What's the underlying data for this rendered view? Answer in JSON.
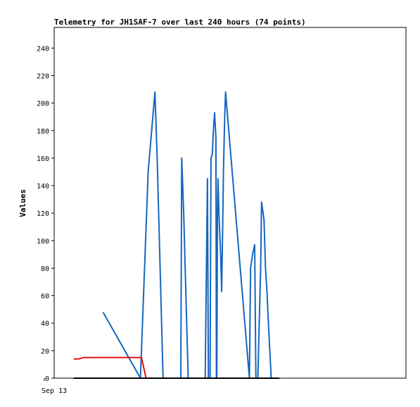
{
  "chart_data": {
    "type": "line",
    "title": "Telemetry for JH1SAF-7 over last 240 hours (74 points)",
    "ylabel": "Values",
    "xlabel": "",
    "ylim": [
      0,
      255
    ],
    "yticks": [
      0,
      20,
      40,
      60,
      80,
      100,
      120,
      140,
      160,
      180,
      200,
      220,
      240
    ],
    "xlim": [
      0,
      240
    ],
    "xticks": [
      {
        "x": 0,
        "label": "Sep 13"
      }
    ],
    "grid": false,
    "legend": "none",
    "series": [
      {
        "color": "#1565c0",
        "x": [
          39.0,
          63.8,
          68.9,
          73.4,
          74.9,
          78.8,
          90.6,
          91.2,
          92.5,
          95.5,
          106.8,
          107.6,
          108.3,
          108.9,
          110.0,
          110.6,
          111.5,
          112.2,
          113.0,
          113.9,
          114.2,
          114.5,
          114.9,
          115.3,
          115.9,
          117.0,
          117.7,
          118.1,
          118.5,
          118.9,
          119.7,
          120.3,
          136.1,
          136.9,
          138.2,
          139.6,
          140.4,
          141.7,
          143.6,
          144.2,
          145.8,
          146.8,
          147.9,
          148.7,
          150.6,
          152.2
        ],
        "values": [
          48,
          0,
          150,
          208,
          160,
          0,
          0,
          160,
          120,
          0,
          0,
          80,
          145,
          0,
          0,
          160,
          163,
          180,
          193,
          175,
          0,
          0,
          120,
          145,
          120,
          90,
          63,
          90,
          120,
          150,
          190,
          208,
          0,
          80,
          90,
          97,
          0,
          0,
          80,
          128,
          115,
          80,
          60,
          40,
          0,
          0
        ]
      },
      {
        "color": "#e01010",
        "x": [
          19.5,
          23.0,
          26.2,
          44.0,
          62.0,
          64.5,
          67.5
        ],
        "values": [
          14,
          14,
          15,
          15,
          15,
          15,
          0
        ]
      },
      {
        "color": "#000000",
        "x": [
          19.5,
          156.0
        ],
        "values": [
          0,
          0
        ]
      }
    ]
  }
}
